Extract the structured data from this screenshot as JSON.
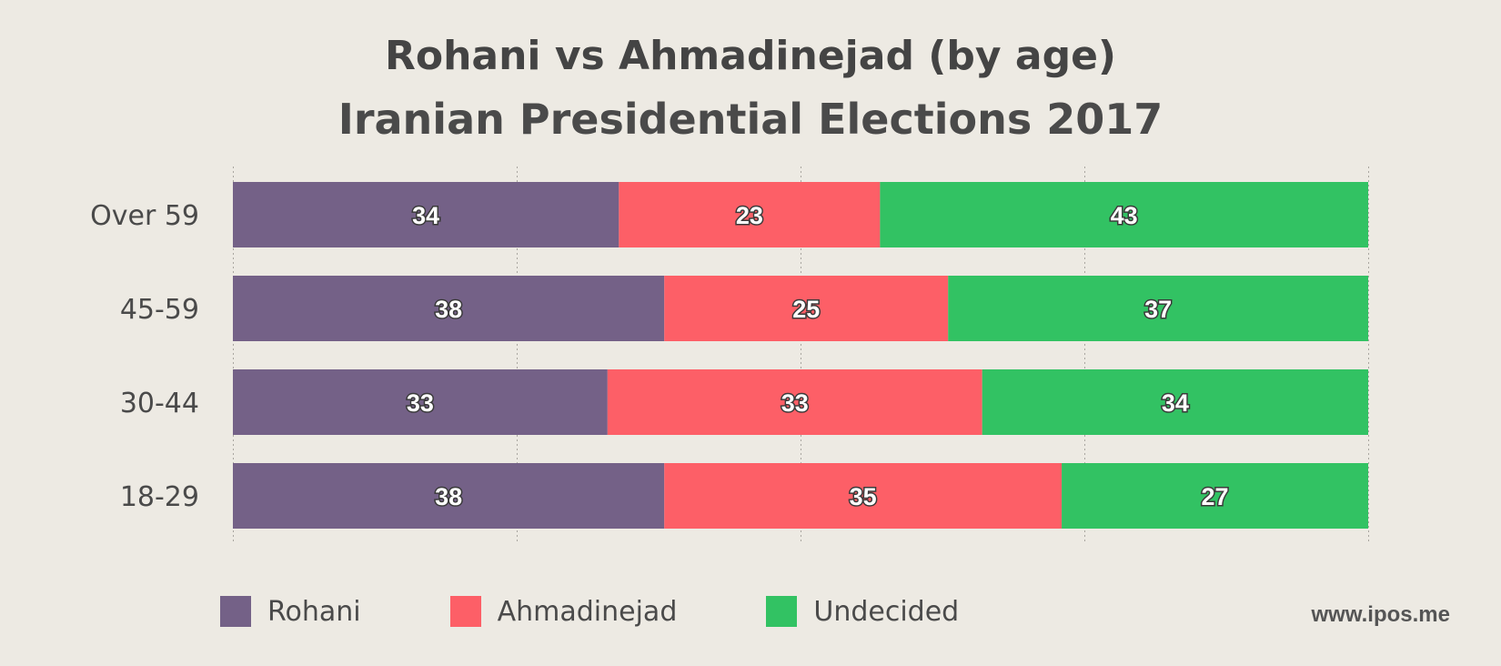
{
  "chart_data": {
    "type": "bar",
    "orientation": "horizontal",
    "stacked": true,
    "title": "Rohani vs Ahmadinejad (by age)",
    "subtitle": "Iranian Presidential Elections 2017",
    "categories": [
      "Over 59",
      "45-59",
      "30-44",
      "18-29"
    ],
    "series": [
      {
        "name": "Rohani",
        "color": "#746187",
        "values": [
          34,
          38,
          33,
          38
        ]
      },
      {
        "name": "Ahmadinejad",
        "color": "#fd5f67",
        "values": [
          23,
          25,
          33,
          35
        ]
      },
      {
        "name": "Undecided",
        "color": "#32c263",
        "values": [
          43,
          37,
          34,
          27
        ]
      }
    ],
    "xlim": [
      0,
      100
    ],
    "grid": true,
    "legend_position": "bottom-left",
    "source": "www.ipos.me"
  }
}
